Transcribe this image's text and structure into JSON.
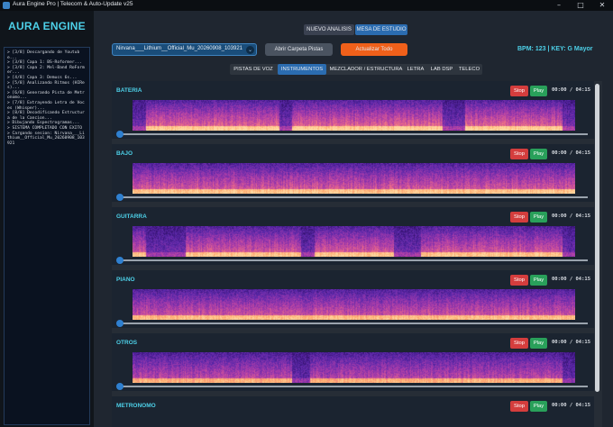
{
  "window": {
    "title": "Aura Engine Pro | Telecom & Auto-Update v25"
  },
  "sidebar": {
    "brand": "AURA ENGINE",
    "log": [
      "> [3/8] Descargando de Youtube...",
      "> [3/8] Capa 1: BS-Roformer...",
      "> [3/8] Capa 2: Mel-Band RoFormer...",
      "> [4/8] Capa 3: Demucs 6s...",
      "> [5/8] Analizando Ritmos (HIRes)...",
      "> [6/8] Generando Pista de Metronomo...",
      "> [7/8] Extrayendo Letra de Voces (Whisper)...",
      "> [8/8] Decodificando Estructura de la Cancion...",
      "> Dibujando Espectrogramas...",
      "> SISTEMA COMPLETADO CON EXITO",
      "> Cargando sesion: Nirvana___Lithium__Official_Mu_20260908_103921"
    ]
  },
  "top_tabs": [
    "NUEVO ANALISIS",
    "MESA DE ESTUDIO"
  ],
  "toolbar": {
    "session_value": "Nirvana___Lithium__Official_Mu_20260908_103921",
    "open_folder_label": "Abrir Carpeta Pistas",
    "update_all_label": "Actualizar Todo",
    "bpm_key": "BPM: 123  |  KEY: G Mayor"
  },
  "sub_tabs": [
    "PISTAS DE VOZ",
    "INSTRUMENTOS",
    "MEZCLADOR / ESTRUCTURA",
    "LETRA",
    "LAB DSP",
    "TELECO"
  ],
  "tracks": [
    {
      "name": "BATERIA",
      "stop": "Stop",
      "play": "Play",
      "time": "00:00 / 04:15",
      "progress": 0
    },
    {
      "name": "BAJO",
      "stop": "Stop",
      "play": "Play",
      "time": "00:00 / 04:15",
      "progress": 0
    },
    {
      "name": "GUITARRA",
      "stop": "Stop",
      "play": "Play",
      "time": "00:00 / 04:15",
      "progress": 0
    },
    {
      "name": "PIANO",
      "stop": "Stop",
      "play": "Play",
      "time": "00:00 / 04:15",
      "progress": 0
    },
    {
      "name": "OTROS",
      "stop": "Stop",
      "play": "Play",
      "time": "00:00 / 04:15",
      "progress": 0
    },
    {
      "name": "METRONOMO",
      "stop": "Stop",
      "play": "Play",
      "time": "00:00 / 04:15",
      "progress": 0
    }
  ],
  "colors": {
    "accent": "#4dd0e8",
    "active_tab": "#2b6cb0",
    "update_button": "#f0601a",
    "stop_button": "#d43d3d",
    "play_button": "#29a05a",
    "spectrogram_low": "#5a2aa8",
    "spectrogram_high": "#ffc27a"
  },
  "icons": {
    "dropdown": "chevron-down-icon",
    "app": "app-icon"
  }
}
